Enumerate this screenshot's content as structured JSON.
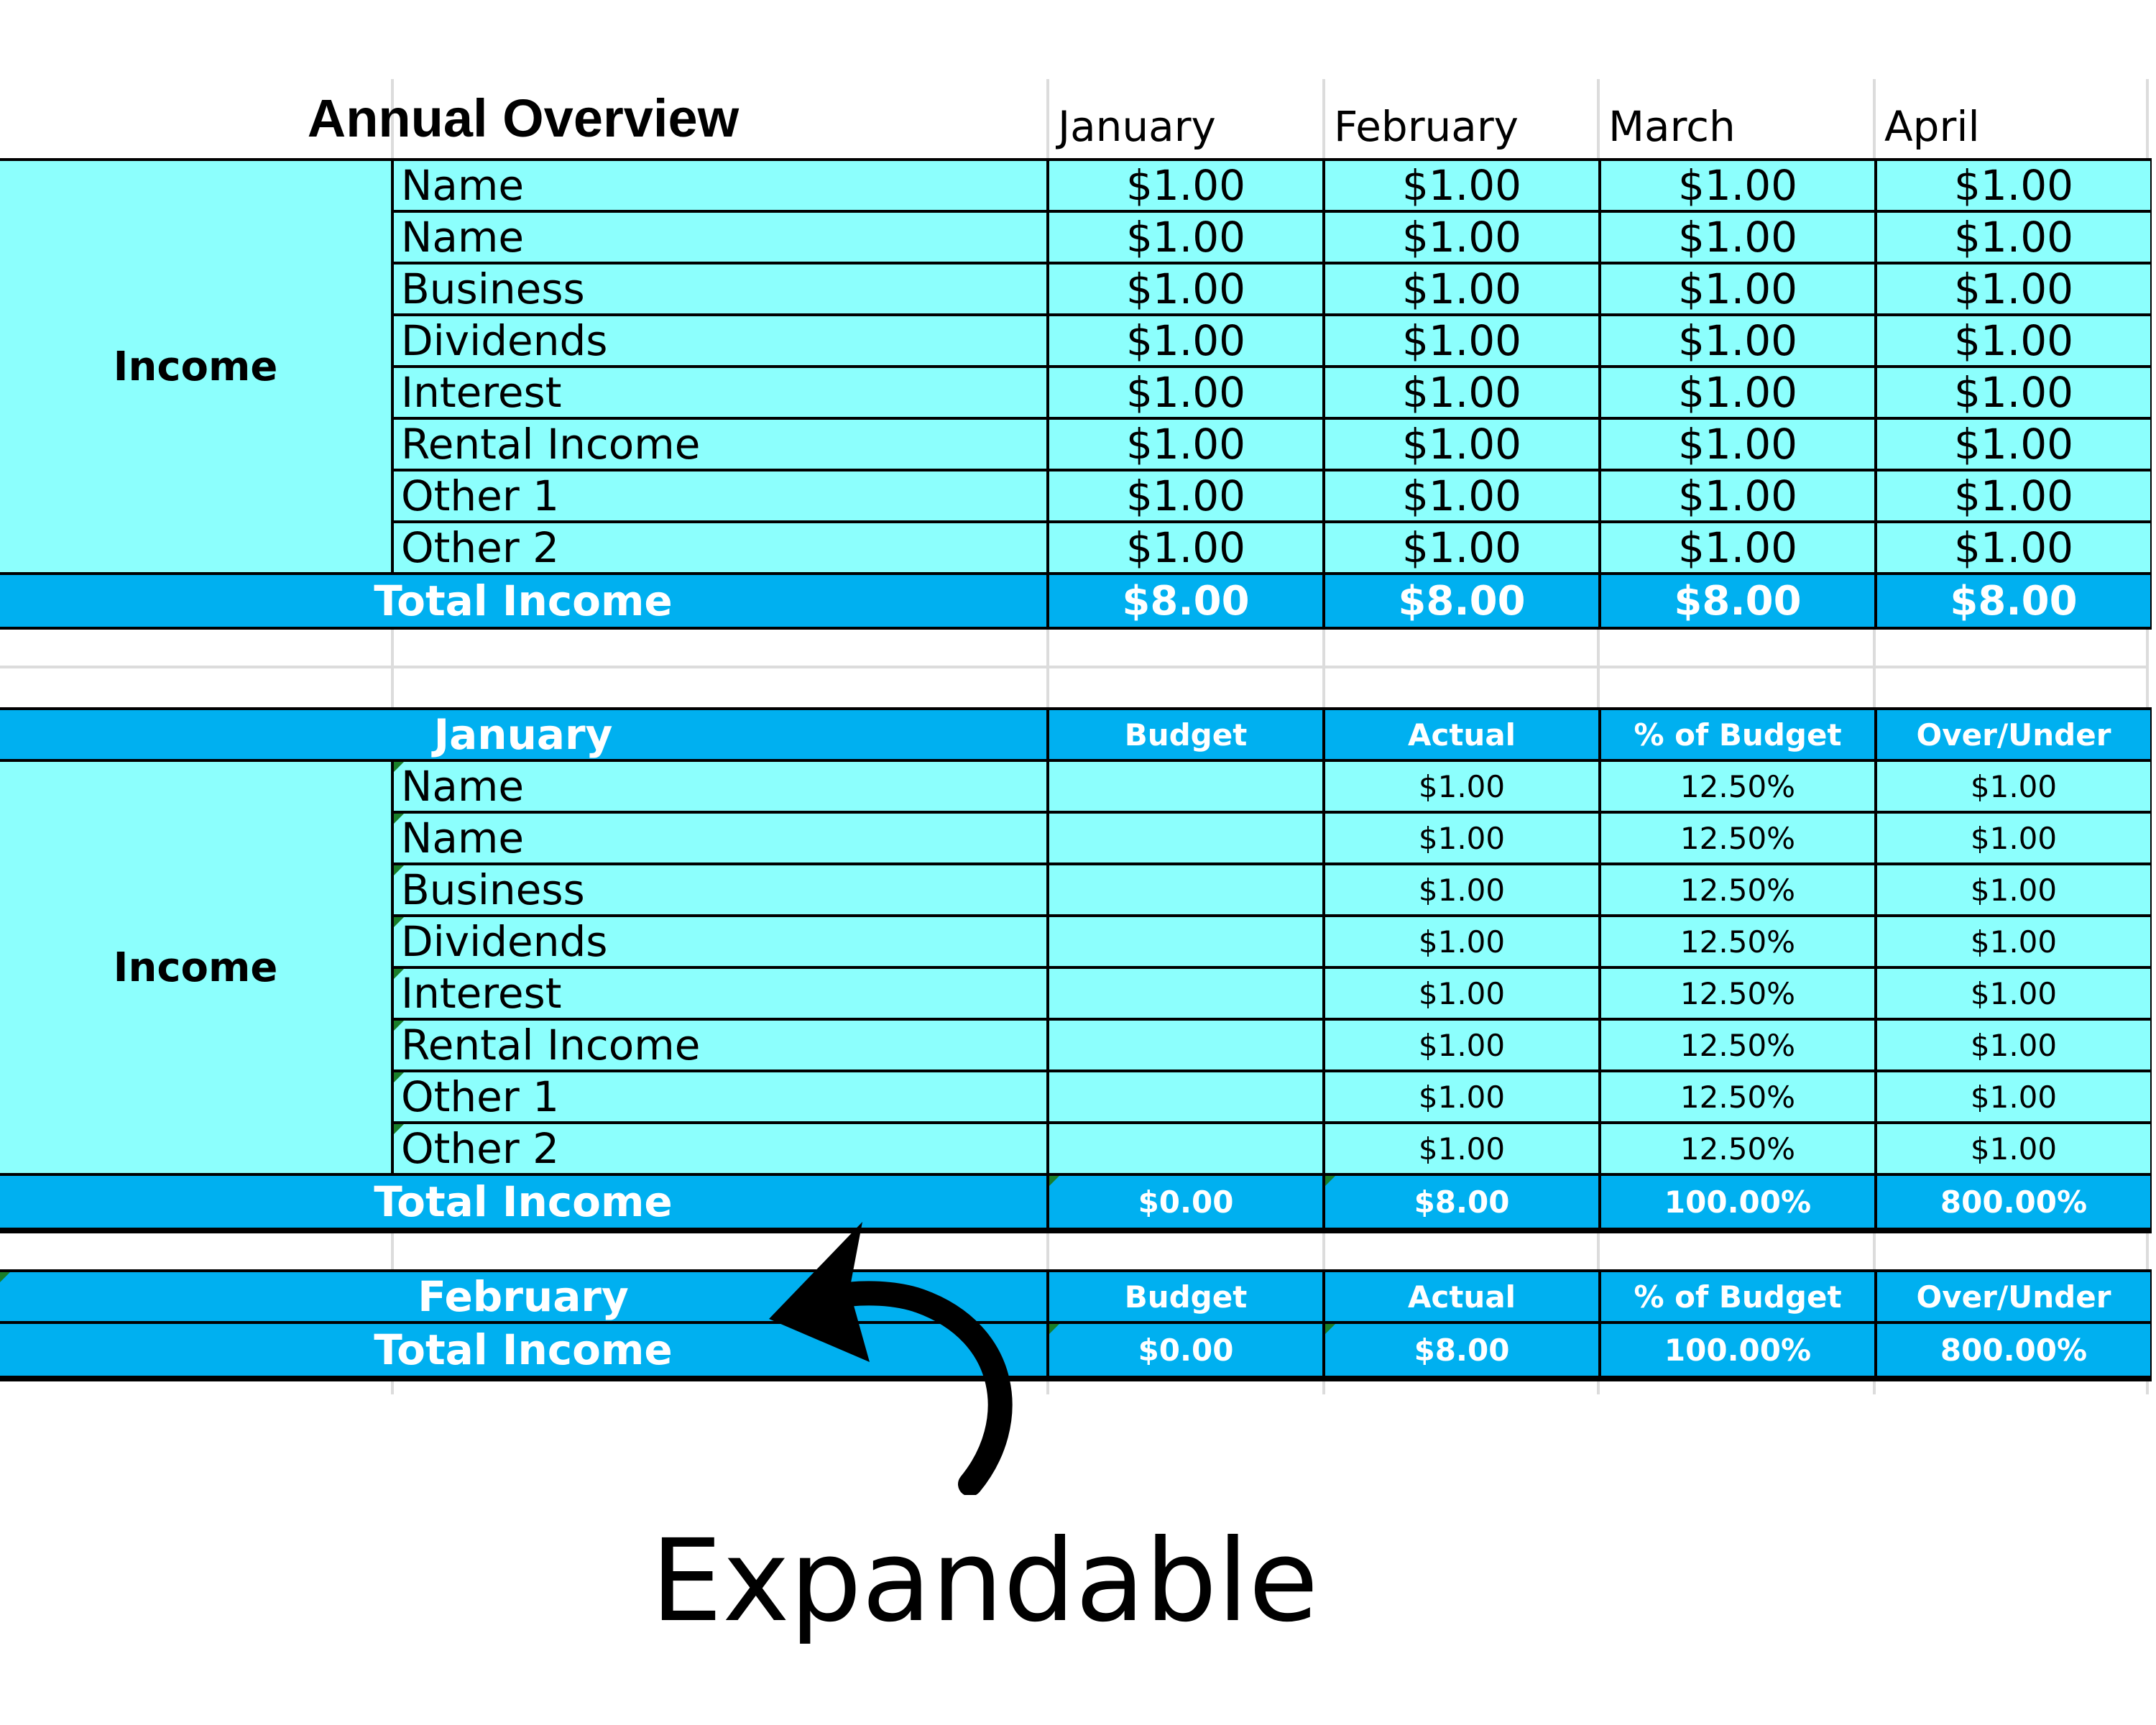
{
  "overview": {
    "title": "Annual Overview",
    "months": [
      "January",
      "February",
      "March",
      "April"
    ],
    "category": "Income",
    "rows": [
      {
        "name": "Name",
        "values": [
          "$1.00",
          "$1.00",
          "$1.00",
          "$1.00"
        ]
      },
      {
        "name": "Name",
        "values": [
          "$1.00",
          "$1.00",
          "$1.00",
          "$1.00"
        ]
      },
      {
        "name": "Business",
        "values": [
          "$1.00",
          "$1.00",
          "$1.00",
          "$1.00"
        ]
      },
      {
        "name": "Dividends",
        "values": [
          "$1.00",
          "$1.00",
          "$1.00",
          "$1.00"
        ]
      },
      {
        "name": "Interest",
        "values": [
          "$1.00",
          "$1.00",
          "$1.00",
          "$1.00"
        ]
      },
      {
        "name": "Rental Income",
        "values": [
          "$1.00",
          "$1.00",
          "$1.00",
          "$1.00"
        ]
      },
      {
        "name": "Other 1",
        "values": [
          "$1.00",
          "$1.00",
          "$1.00",
          "$1.00"
        ]
      },
      {
        "name": "Other 2",
        "values": [
          "$1.00",
          "$1.00",
          "$1.00",
          "$1.00"
        ]
      }
    ],
    "total": {
      "label": "Total Income",
      "values": [
        "$8.00",
        "$8.00",
        "$8.00",
        "$8.00"
      ]
    }
  },
  "january": {
    "title": "January",
    "columns": [
      "Budget",
      "Actual",
      "% of Budget",
      "Over/Under"
    ],
    "category": "Income",
    "rows": [
      {
        "name": "Name",
        "budget": "",
        "actual": "$1.00",
        "pct": "12.50%",
        "over": "$1.00"
      },
      {
        "name": "Name",
        "budget": "",
        "actual": "$1.00",
        "pct": "12.50%",
        "over": "$1.00"
      },
      {
        "name": "Business",
        "budget": "",
        "actual": "$1.00",
        "pct": "12.50%",
        "over": "$1.00"
      },
      {
        "name": "Dividends",
        "budget": "",
        "actual": "$1.00",
        "pct": "12.50%",
        "over": "$1.00"
      },
      {
        "name": "Interest",
        "budget": "",
        "actual": "$1.00",
        "pct": "12.50%",
        "over": "$1.00"
      },
      {
        "name": "Rental Income",
        "budget": "",
        "actual": "$1.00",
        "pct": "12.50%",
        "over": "$1.00"
      },
      {
        "name": "Other 1",
        "budget": "",
        "actual": "$1.00",
        "pct": "12.50%",
        "over": "$1.00"
      },
      {
        "name": "Other 2",
        "budget": "",
        "actual": "$1.00",
        "pct": "12.50%",
        "over": "$1.00"
      }
    ],
    "total": {
      "label": "Total Income",
      "budget": "$0.00",
      "actual": "$8.00",
      "pct": "100.00%",
      "over": "800.00%"
    }
  },
  "february": {
    "title": "February",
    "columns": [
      "Budget",
      "Actual",
      "% of Budget",
      "Over/Under"
    ],
    "total": {
      "label": "Total Income",
      "budget": "$0.00",
      "actual": "$8.00",
      "pct": "100.00%",
      "over": "800.00%"
    }
  },
  "annotation": {
    "text": "Expandable",
    "arrow_icon": "curved-arrow-icon"
  },
  "colors": {
    "light_row": "#8cfffd",
    "total_row": "#00b0f0",
    "marker": "#1a7f2a"
  }
}
